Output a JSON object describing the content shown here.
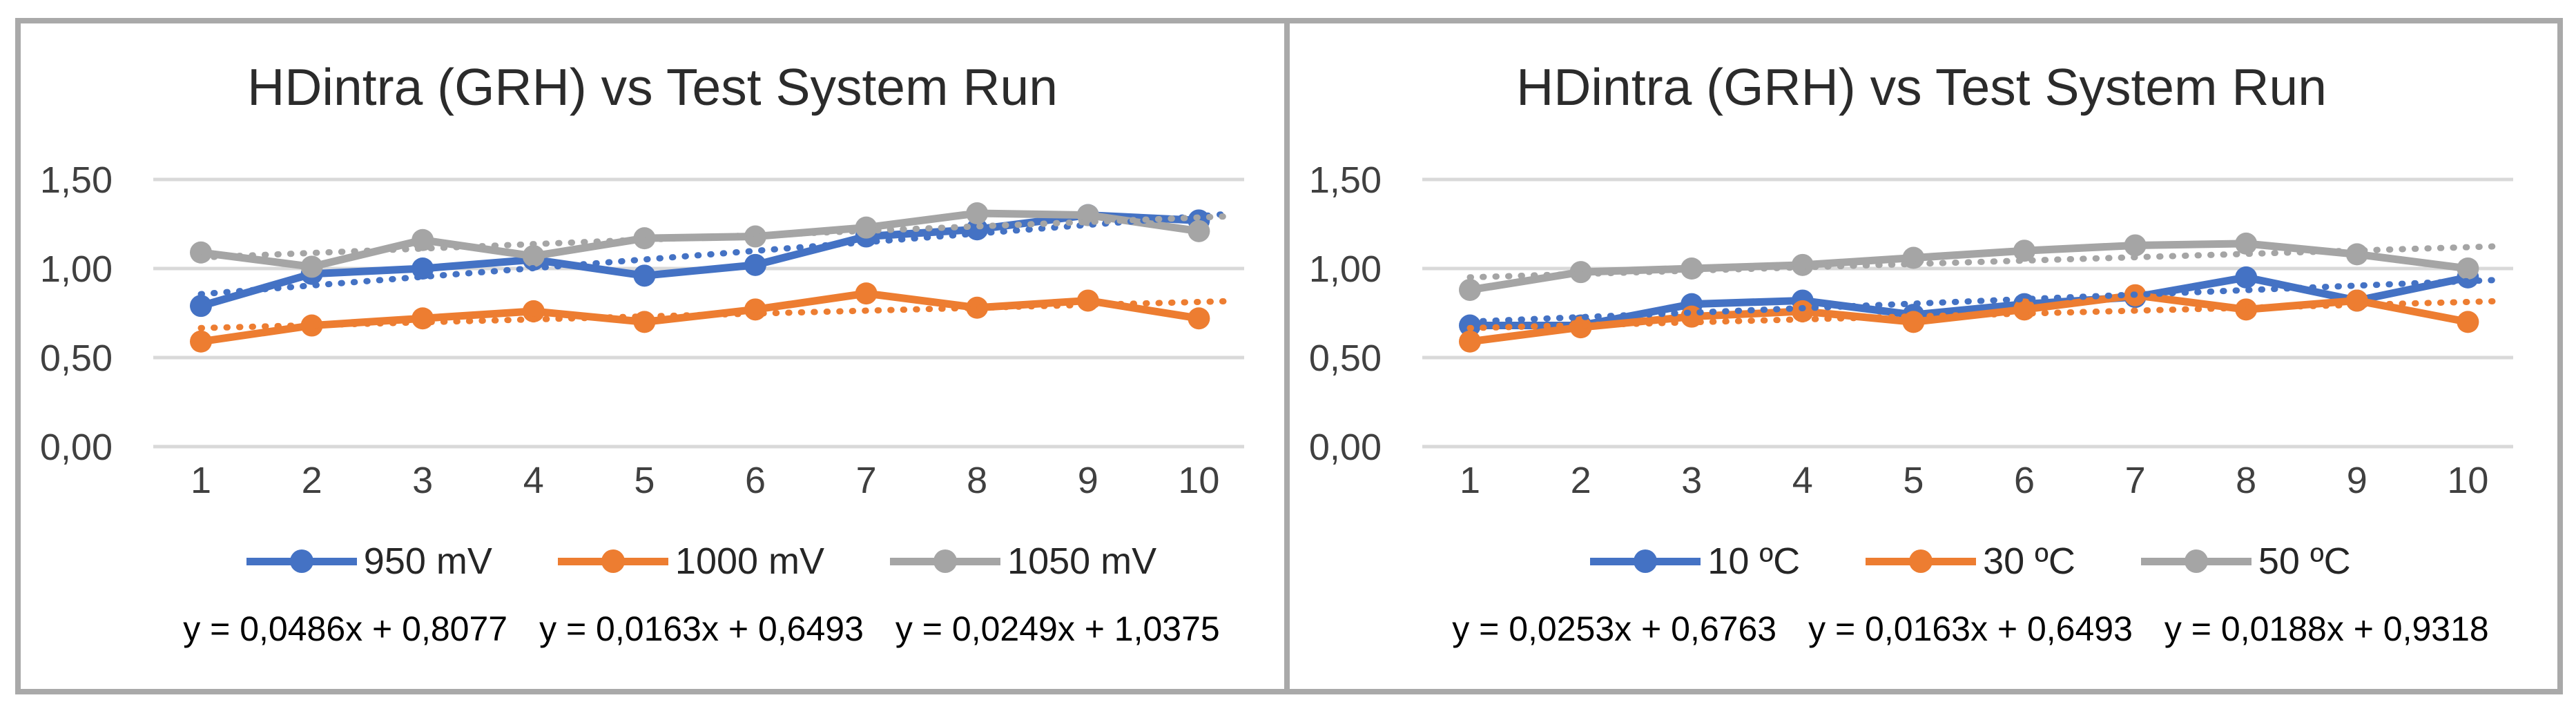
{
  "frame": {
    "border_color": "#a9a9a9",
    "background": "#ffffff"
  },
  "palette": {
    "series_blue": "#4472C4",
    "series_orange": "#ED7D31",
    "series_gray": "#A5A5A5",
    "gridline": "#D9D9D9",
    "axis_text": "#404040",
    "title_text": "#2b2b2b",
    "equation_text": "#000000"
  },
  "chart_data": [
    {
      "type": "line",
      "title": "HDintra (GRH) vs Test System Run",
      "xlabel": "",
      "ylabel": "",
      "x": [
        1,
        2,
        3,
        4,
        5,
        6,
        7,
        8,
        9,
        10
      ],
      "x_tick_labels": [
        "1",
        "2",
        "3",
        "4",
        "5",
        "6",
        "7",
        "8",
        "9",
        "10"
      ],
      "ylim": [
        0,
        1.5
      ],
      "y_ticks": [
        {
          "value": 1.5,
          "label": "1,50"
        },
        {
          "value": 1.0,
          "label": "1,00"
        },
        {
          "value": 0.5,
          "label": "0,50"
        },
        {
          "value": 0.0,
          "label": "0,00"
        }
      ],
      "grid": true,
      "legend_position": "bottom",
      "series": [
        {
          "name": "950 mV",
          "color": "#4472C4",
          "marker": "circle",
          "values": [
            0.79,
            0.97,
            1.0,
            1.05,
            0.96,
            1.02,
            1.18,
            1.22,
            1.3,
            1.27
          ],
          "trendline": {
            "style": "dotted",
            "slope": 0.0486,
            "intercept": 0.8077,
            "equation": "y = 0,0486x + 0,8077"
          }
        },
        {
          "name": "1000 mV",
          "color": "#ED7D31",
          "marker": "circle",
          "values": [
            0.59,
            0.68,
            0.72,
            0.76,
            0.7,
            0.77,
            0.86,
            0.78,
            0.82,
            0.72
          ],
          "trendline": {
            "style": "dotted",
            "slope": 0.0163,
            "intercept": 0.6493,
            "equation": "y = 0,0163x + 0,6493"
          }
        },
        {
          "name": "1050 mV",
          "color": "#A5A5A5",
          "marker": "circle",
          "values": [
            1.09,
            1.01,
            1.16,
            1.07,
            1.17,
            1.18,
            1.23,
            1.31,
            1.3,
            1.21
          ],
          "trendline": {
            "style": "dotted",
            "slope": 0.0249,
            "intercept": 1.0375,
            "equation": "y = 0,0249x + 1,0375"
          }
        }
      ]
    },
    {
      "type": "line",
      "title": "HDintra (GRH) vs Test System Run",
      "xlabel": "",
      "ylabel": "",
      "x": [
        1,
        2,
        3,
        4,
        5,
        6,
        7,
        8,
        9,
        10
      ],
      "x_tick_labels": [
        "1",
        "2",
        "3",
        "4",
        "5",
        "6",
        "7",
        "8",
        "9",
        "10"
      ],
      "ylim": [
        0,
        1.5
      ],
      "y_ticks": [
        {
          "value": 1.5,
          "label": "1,50"
        },
        {
          "value": 1.0,
          "label": "1,00"
        },
        {
          "value": 0.5,
          "label": "0,50"
        },
        {
          "value": 0.0,
          "label": "0,00"
        }
      ],
      "grid": true,
      "legend_position": "bottom",
      "series": [
        {
          "name": "10 ºC",
          "color": "#4472C4",
          "marker": "circle",
          "values": [
            0.68,
            0.68,
            0.8,
            0.82,
            0.74,
            0.8,
            0.84,
            0.95,
            0.82,
            0.95
          ],
          "trendline": {
            "style": "dotted",
            "slope": 0.0253,
            "intercept": 0.6763,
            "equation": "y = 0,0253x + 0,6763"
          }
        },
        {
          "name": "30 ºC",
          "color": "#ED7D31",
          "marker": "circle",
          "values": [
            0.59,
            0.67,
            0.73,
            0.76,
            0.7,
            0.77,
            0.85,
            0.77,
            0.82,
            0.7
          ],
          "trendline": {
            "style": "dotted",
            "slope": 0.0163,
            "intercept": 0.6493,
            "equation": "y = 0,0163x + 0,6493"
          }
        },
        {
          "name": "50 ºC",
          "color": "#A5A5A5",
          "marker": "circle",
          "values": [
            0.88,
            0.98,
            1.0,
            1.02,
            1.06,
            1.1,
            1.13,
            1.14,
            1.08,
            1.0
          ],
          "trendline": {
            "style": "dotted",
            "slope": 0.0188,
            "intercept": 0.9318,
            "equation": "y = 0,0188x + 0,9318"
          }
        }
      ]
    }
  ]
}
